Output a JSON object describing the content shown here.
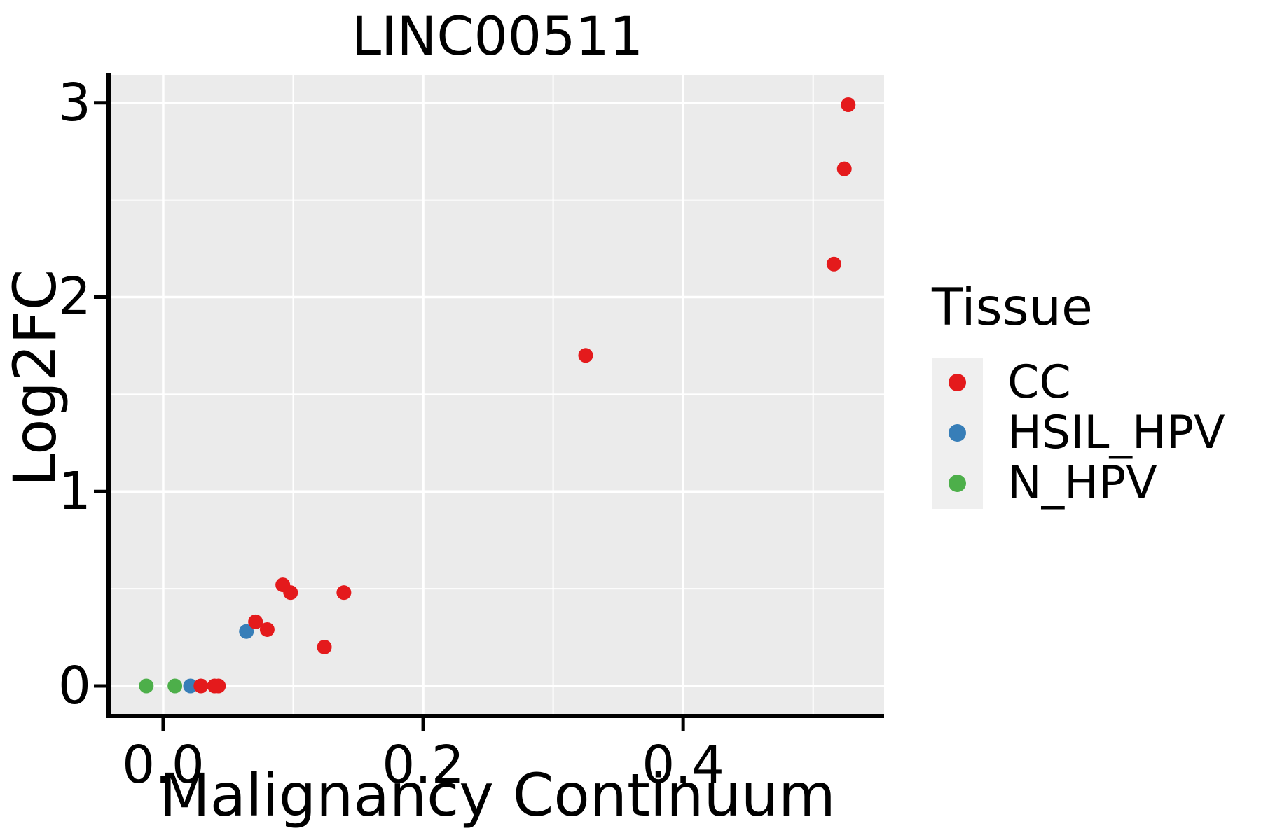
{
  "figure": {
    "title": "LINC00511"
  },
  "axes": {
    "x": {
      "label": "Malignancy Continuum",
      "tick_labels": [
        "0.0",
        "0.2",
        "0.4"
      ],
      "tick_values": [
        0.0,
        0.2,
        0.4
      ],
      "minor_tick_values": [
        0.1,
        0.3,
        0.5
      ],
      "range": [
        -0.0404,
        0.5546
      ]
    },
    "y": {
      "label": "Log2FC",
      "tick_labels": [
        "0",
        "1",
        "2",
        "3"
      ],
      "tick_values": [
        0,
        1,
        2,
        3
      ],
      "minor_tick_values": [
        0.5,
        1.5,
        2.5
      ],
      "range": [
        -0.144,
        3.143
      ]
    }
  },
  "legend": {
    "title": "Tissue",
    "entries": [
      {
        "label": "CC",
        "color": "#E41A1C"
      },
      {
        "label": "HSIL_HPV",
        "color": "#377EB8"
      },
      {
        "label": "N_HPV",
        "color": "#4DAF4A"
      }
    ]
  },
  "style": {
    "panel_bg": "#EBEBEB",
    "grid_color": "#FFFFFF",
    "axis_color": "#000000",
    "text_color": "#000000",
    "major_grid_width": 3.5,
    "minor_grid_width": 2,
    "dot_radius": 10.5
  },
  "chart_data": {
    "type": "scatter",
    "title": "LINC00511",
    "xlabel": "Malignancy Continuum",
    "ylabel": "Log2FC",
    "xlim": [
      -0.04,
      0.555
    ],
    "ylim": [
      -0.14,
      3.14
    ],
    "grid": "white major and minor gridlines on gray panel",
    "legend_title": "Tissue",
    "legend_position": "right",
    "series": [
      {
        "name": "HSIL_HPV",
        "color": "#377EB8",
        "points": [
          [
            0.021,
            0.0
          ],
          [
            0.064,
            0.28
          ]
        ]
      },
      {
        "name": "N_HPV",
        "color": "#4DAF4A",
        "points": [
          [
            -0.013,
            0.0
          ],
          [
            0.009,
            0.0
          ]
        ]
      },
      {
        "name": "CC",
        "color": "#E41A1C",
        "points": [
          [
            0.029,
            0.0
          ],
          [
            0.0395,
            0.0
          ],
          [
            0.0425,
            0.0
          ],
          [
            0.071,
            0.33
          ],
          [
            0.08,
            0.29
          ],
          [
            0.092,
            0.52
          ],
          [
            0.098,
            0.48
          ],
          [
            0.124,
            0.2
          ],
          [
            0.139,
            0.48
          ],
          [
            0.325,
            1.7
          ],
          [
            0.516,
            2.17
          ],
          [
            0.524,
            2.66
          ],
          [
            0.527,
            2.99
          ]
        ]
      }
    ]
  }
}
